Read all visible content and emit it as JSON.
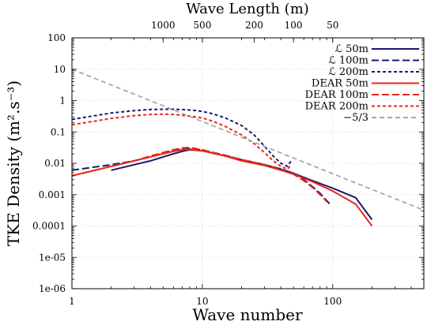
{
  "chart_data": {
    "type": "line",
    "xlabel": "Wave number",
    "ylabel": "TKE Density (m².s⁻³)",
    "x2label": "Wave Length (m)",
    "xscale": "log",
    "yscale": "log",
    "xlim": [
      1,
      500
    ],
    "ylim": [
      1e-06,
      100
    ],
    "grid": true,
    "legend_position": "top-right",
    "x_ticks": [
      {
        "value": 1,
        "label": "1"
      },
      {
        "value": 10,
        "label": "10"
      },
      {
        "value": 100,
        "label": "100"
      }
    ],
    "y_ticks": [
      {
        "value": 100,
        "label": "100"
      },
      {
        "value": 10,
        "label": "10"
      },
      {
        "value": 1,
        "label": "1"
      },
      {
        "value": 0.1,
        "label": "0.1"
      },
      {
        "value": 0.01,
        "label": "0.01"
      },
      {
        "value": 0.001,
        "label": "0.001"
      },
      {
        "value": 0.0001,
        "label": "0.0001"
      },
      {
        "value": 1e-05,
        "label": "1e-05"
      },
      {
        "value": 1e-06,
        "label": "1e-06"
      }
    ],
    "top_ticks": [
      {
        "value": 1000,
        "label": "1000"
      },
      {
        "value": 500,
        "label": "500"
      },
      {
        "value": 200,
        "label": "200"
      },
      {
        "value": 100,
        "label": "100"
      },
      {
        "value": 50,
        "label": "50"
      }
    ],
    "series": [
      {
        "name": "ℒ 50m",
        "color": "#1a1a6e",
        "dash": "solid",
        "x": [
          2,
          3,
          4,
          5,
          6,
          7,
          8,
          10,
          15,
          20,
          30,
          40,
          50,
          70,
          100,
          150,
          200
        ],
        "y": [
          0.006,
          0.009,
          0.012,
          0.016,
          0.02,
          0.024,
          0.027,
          0.025,
          0.017,
          0.013,
          0.009,
          0.0065,
          0.0048,
          0.0028,
          0.0016,
          0.0008,
          0.00016
        ]
      },
      {
        "name": "ℒ 100m",
        "color": "#1a1a6e",
        "dash": "long",
        "x": [
          1,
          2,
          3,
          4,
          5,
          6,
          7,
          8,
          10,
          15,
          20,
          30,
          40,
          50,
          60,
          70,
          80,
          95
        ],
        "y": [
          0.006,
          0.009,
          0.012,
          0.016,
          0.021,
          0.026,
          0.029,
          0.03,
          0.026,
          0.018,
          0.013,
          0.009,
          0.0066,
          0.0048,
          0.003,
          0.0018,
          0.0011,
          0.0005
        ]
      },
      {
        "name": "ℒ 200m",
        "color": "#1a1a6e",
        "dash": "short",
        "x": [
          1,
          1.5,
          2,
          3,
          4,
          5,
          6,
          7,
          8,
          9,
          10,
          12,
          15,
          20,
          25,
          30,
          35,
          40,
          45,
          48
        ],
        "y": [
          0.25,
          0.33,
          0.4,
          0.48,
          0.52,
          0.53,
          0.53,
          0.52,
          0.5,
          0.48,
          0.45,
          0.38,
          0.28,
          0.16,
          0.08,
          0.035,
          0.017,
          0.01,
          0.008,
          0.012
        ]
      },
      {
        "name": "DEAR 50m",
        "color": "#e8281a",
        "dash": "solid",
        "x": [
          1,
          2,
          3,
          4,
          5,
          6,
          7,
          8,
          10,
          15,
          20,
          30,
          40,
          50,
          70,
          100,
          150,
          200
        ],
        "y": [
          0.004,
          0.008,
          0.012,
          0.016,
          0.02,
          0.024,
          0.027,
          0.028,
          0.025,
          0.017,
          0.012,
          0.0085,
          0.006,
          0.0045,
          0.0026,
          0.0013,
          0.0005,
          0.0001
        ]
      },
      {
        "name": "DEAR 100m",
        "color": "#e8281a",
        "dash": "long",
        "x": [
          1,
          2,
          3,
          4,
          5,
          6,
          7,
          8,
          10,
          15,
          20,
          30,
          40,
          50,
          60,
          70,
          80,
          90
        ],
        "y": [
          0.004,
          0.008,
          0.012,
          0.017,
          0.022,
          0.027,
          0.031,
          0.032,
          0.027,
          0.018,
          0.013,
          0.009,
          0.0062,
          0.0045,
          0.0028,
          0.0017,
          0.001,
          0.0006
        ]
      },
      {
        "name": "DEAR 200m",
        "color": "#e8281a",
        "dash": "short",
        "x": [
          1,
          1.5,
          2,
          3,
          4,
          5,
          6,
          7,
          8,
          10,
          12,
          15,
          20,
          25,
          30,
          35,
          40,
          45,
          48
        ],
        "y": [
          0.17,
          0.22,
          0.27,
          0.33,
          0.36,
          0.37,
          0.36,
          0.34,
          0.32,
          0.28,
          0.22,
          0.15,
          0.08,
          0.042,
          0.022,
          0.012,
          0.008,
          0.0065,
          0.009
        ]
      },
      {
        "name": "−5/3",
        "color": "#a8a8a8",
        "dash": "medium",
        "x": [
          1,
          500
        ],
        "y": [
          10,
          0.000318
        ]
      }
    ]
  }
}
